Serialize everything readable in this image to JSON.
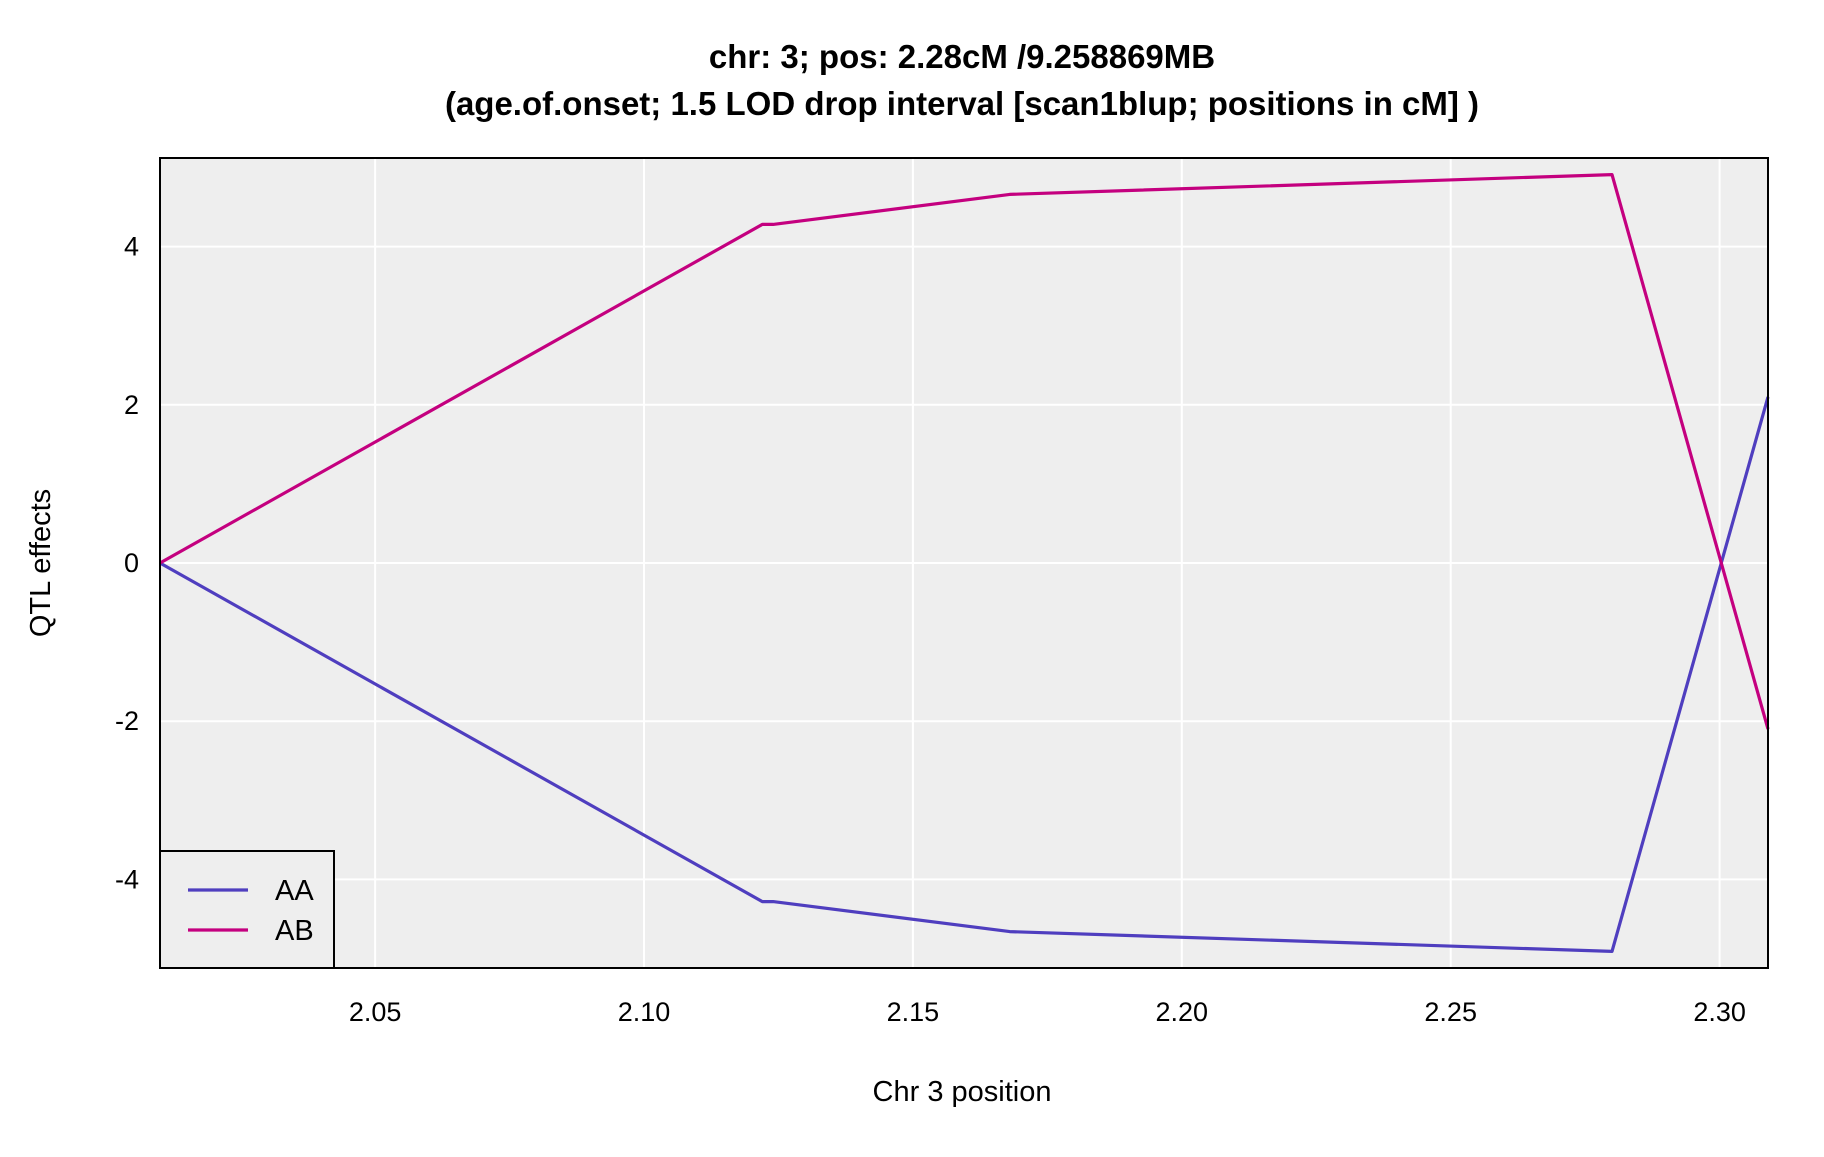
{
  "chart_data": {
    "type": "line",
    "title": "chr: 3; pos: 2.28cM /9.258869MB",
    "subtitle": "(age.of.onset; 1.5 LOD drop interval [scan1blup; positions in cM] )",
    "xlabel": "Chr 3 position",
    "ylabel": "QTL effects",
    "xlim": [
      2.01,
      2.309
    ],
    "ylim": [
      -5.12,
      5.12
    ],
    "xticks": [
      2.05,
      2.1,
      2.15,
      2.2,
      2.25,
      2.3
    ],
    "xtick_labels": [
      "2.05",
      "2.10",
      "2.15",
      "2.20",
      "2.25",
      "2.30"
    ],
    "yticks": [
      -4,
      -2,
      0,
      2,
      4
    ],
    "ytick_labels": [
      "-4",
      "-2",
      "0",
      "2",
      "4"
    ],
    "grid": true,
    "legend_position": "bottom-left",
    "background": "#eeeeee",
    "series": [
      {
        "name": "AA",
        "color": "#4f3ebf",
        "x": [
          2.01,
          2.122,
          2.124,
          2.168,
          2.28,
          2.309
        ],
        "y": [
          0,
          -4.28,
          -4.28,
          -4.66,
          -4.91,
          2.1
        ]
      },
      {
        "name": "AB",
        "color": "#c4007f",
        "x": [
          2.01,
          2.122,
          2.124,
          2.168,
          2.28,
          2.309
        ],
        "y": [
          0,
          4.28,
          4.28,
          4.66,
          4.91,
          -2.1
        ]
      }
    ]
  }
}
